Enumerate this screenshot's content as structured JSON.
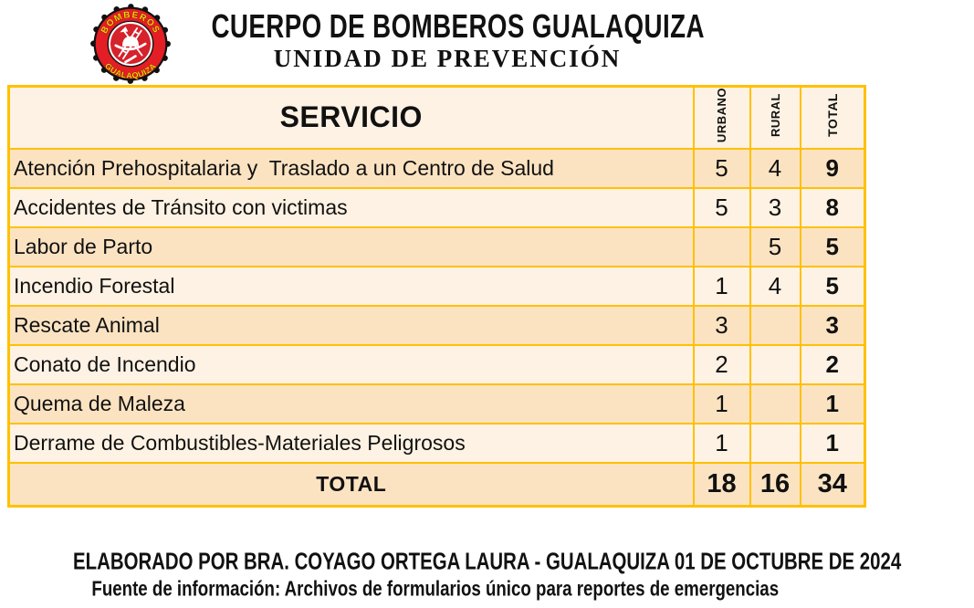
{
  "header": {
    "org_title": "CUERPO DE BOMBEROS GUALAQUIZA",
    "unit_title": "UNIDAD DE PREVENCIÓN",
    "logo": {
      "top_text": "BOMBEROS",
      "bottom_text": "GUALAQUIZA",
      "colors": {
        "outer_ring": "#111111",
        "red_ring": "#E31E24",
        "inner_disc": "#D5222B",
        "text": "#FFD200",
        "emblem": "#FFFFFF"
      }
    }
  },
  "table": {
    "columns": [
      "SERVICIO",
      "URBANO",
      "RURAL",
      "TOTAL"
    ],
    "rows": [
      {
        "service": "Atención Prehospitalaria y  Traslado a un Centro de Salud",
        "urbano": "5",
        "rural": "4",
        "total": "9"
      },
      {
        "service": "Accidentes de Tránsito con victimas",
        "urbano": "5",
        "rural": "3",
        "total": "8"
      },
      {
        "service": "Labor de Parto",
        "urbano": "",
        "rural": "5",
        "total": "5"
      },
      {
        "service": "Incendio Forestal",
        "urbano": "1",
        "rural": "4",
        "total": "5"
      },
      {
        "service": "Rescate Animal",
        "urbano": "3",
        "rural": "",
        "total": "3"
      },
      {
        "service": "Conato de Incendio",
        "urbano": "2",
        "rural": "",
        "total": "2"
      },
      {
        "service": "Quema de Maleza",
        "urbano": "1",
        "rural": "",
        "total": "1"
      },
      {
        "service": "Derrame de Combustibles-Materiales Peligrosos",
        "urbano": "1",
        "rural": "",
        "total": "1"
      }
    ],
    "total_row": {
      "label": "TOTAL",
      "urbano": "18",
      "rural": "16",
      "total": "34"
    },
    "colors": {
      "border": "#FFC000",
      "row_dark": "#FBE3C2",
      "row_light": "#FDF2E3"
    }
  },
  "footer": {
    "line1": "ELABORADO POR BRA. COYAGO ORTEGA LAURA - GUALAQUIZA  01 DE OCTUBRE DE 2024",
    "line2": "Fuente de información: Archivos de formularios único para reportes de emergencias"
  }
}
